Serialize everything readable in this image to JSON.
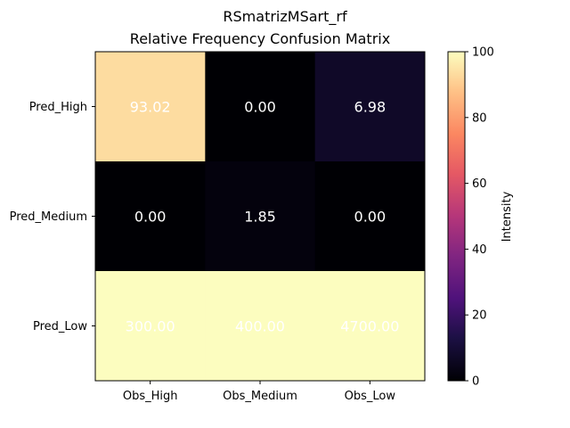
{
  "chart_data": {
    "type": "heatmap",
    "title": "RSmatrizMSart_rf",
    "subtitle": "Relative Frequency Confusion Matrix",
    "x_categories": [
      "Obs_High",
      "Obs_Medium",
      "Obs_Low"
    ],
    "y_categories": [
      "Pred_High",
      "Pred_Medium",
      "Pred_Low"
    ],
    "values": [
      [
        93.02,
        0.0,
        6.98
      ],
      [
        0.0,
        1.85,
        0.0
      ],
      [
        300.0,
        400.0,
        4700.0
      ]
    ],
    "cell_labels": [
      [
        "93.02",
        "0.00",
        "6.98"
      ],
      [
        "0.00",
        "1.85",
        "0.00"
      ],
      [
        "300.00",
        "400.00",
        "4700.00"
      ]
    ],
    "colormap": "magma",
    "color_range": [
      0,
      100
    ],
    "cell_label_color": "#ffffff",
    "colorbar": {
      "label": "Intensity",
      "ticks": [
        0,
        20,
        40,
        60,
        80,
        100
      ],
      "tick_labels": [
        "0",
        "20",
        "40",
        "60",
        "80",
        "100"
      ]
    }
  }
}
